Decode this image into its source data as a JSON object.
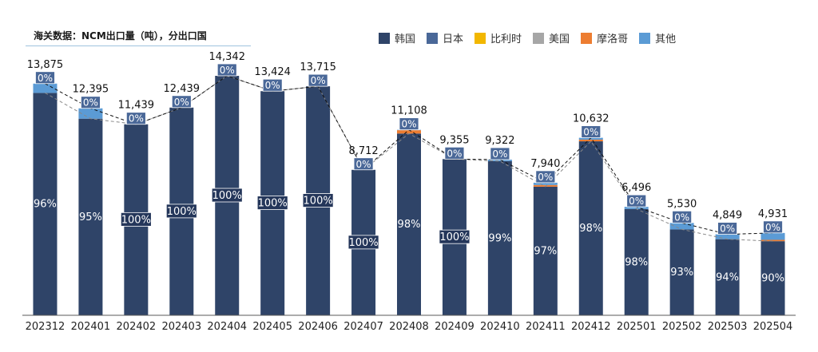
{
  "title": "海关数据：NCM出口量（吨），分出口国",
  "legend": [
    {
      "name": "韩国",
      "color": "#2f4468"
    },
    {
      "name": "日本",
      "color": "#4a6898"
    },
    {
      "name": "比利时",
      "color": "#f2b700"
    },
    {
      "name": "美国",
      "color": "#a6a6a6"
    },
    {
      "name": "摩洛哥",
      "color": "#ed7d31"
    },
    {
      "name": "其他",
      "color": "#5b9bd5"
    }
  ],
  "chart_data": {
    "type": "bar",
    "stacked": true,
    "unit": "吨",
    "categories": [
      "202312",
      "202401",
      "202402",
      "202403",
      "202404",
      "202405",
      "202406",
      "202407",
      "202408",
      "202409",
      "202410",
      "202411",
      "202412",
      "202501",
      "202502",
      "202503",
      "202504"
    ],
    "totals": [
      13875,
      12395,
      11439,
      12439,
      14342,
      13424,
      13715,
      8712,
      11108,
      9355,
      9322,
      7940,
      10632,
      6496,
      5530,
      4849,
      4931
    ],
    "total_labels": [
      "13,875",
      "12,395",
      "11,439",
      "12,439",
      "14,342",
      "13,424",
      "13,715",
      "8,712",
      "11,108",
      "9,355",
      "9,322",
      "7,940",
      "10,632",
      "6,496",
      "5,530",
      "4,849",
      "4,931"
    ],
    "korea_share_labels": [
      "96%",
      "95%",
      "100%",
      "100%",
      "100%",
      "100%",
      "100%",
      "100%",
      "98%",
      "100%",
      "99%",
      "97%",
      "98%",
      "98%",
      "93%",
      "94%",
      "90%"
    ],
    "japan_share_labels": [
      "0%",
      "0%",
      "0%",
      "0%",
      "0%",
      "0%",
      "0%",
      "0%",
      "0%",
      "0%",
      "0%",
      "0%",
      "0%",
      "0%",
      "0%",
      "0%",
      "0%"
    ],
    "series": [
      {
        "name": "韩国",
        "values": [
          13320,
          11775,
          11439,
          12439,
          14342,
          13424,
          13715,
          8712,
          10886,
          9355,
          9229,
          7702,
          10419,
          6366,
          5143,
          4558,
          4438
        ]
      },
      {
        "name": "日本",
        "values": [
          0,
          0,
          0,
          0,
          0,
          0,
          0,
          0,
          0,
          0,
          0,
          0,
          0,
          0,
          0,
          0,
          0
        ]
      },
      {
        "name": "比利时",
        "values": [
          0,
          0,
          0,
          0,
          0,
          0,
          0,
          0,
          0,
          0,
          0,
          0,
          0,
          0,
          0,
          0,
          0
        ]
      },
      {
        "name": "美国",
        "values": [
          0,
          0,
          0,
          0,
          0,
          0,
          0,
          0,
          0,
          0,
          0,
          0,
          0,
          0,
          0,
          0,
          0
        ]
      },
      {
        "name": "摩洛哥",
        "values": [
          0,
          0,
          0,
          0,
          0,
          0,
          0,
          0,
          200,
          0,
          0,
          100,
          100,
          0,
          0,
          0,
          80
        ]
      },
      {
        "name": "其他",
        "values": [
          555,
          620,
          0,
          0,
          0,
          0,
          0,
          0,
          22,
          0,
          93,
          138,
          113,
          130,
          387,
          291,
          413
        ]
      }
    ],
    "ylim": [
      0,
      16000
    ],
    "grid": false,
    "legend_position": "top-right",
    "colors": {
      "korea": "#2f4468",
      "japan": "#4a6898",
      "morocco": "#ed7d31",
      "other": "#5b9bd5",
      "axis": "#595959"
    }
  }
}
